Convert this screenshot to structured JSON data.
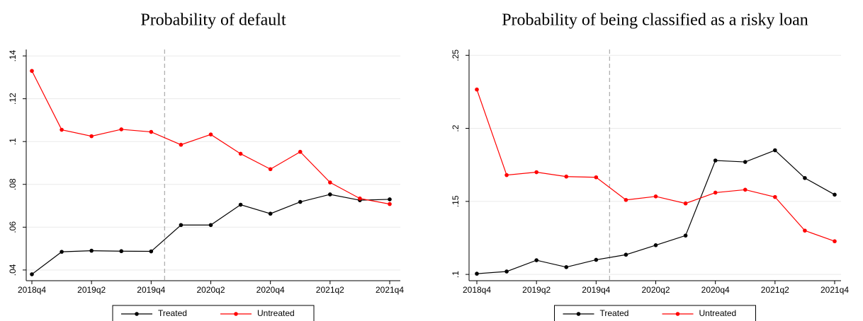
{
  "chart_data": [
    {
      "type": "line",
      "title": "Probability of default",
      "categories": [
        "2018q4",
        null,
        "2019q2",
        null,
        "2019q4",
        null,
        "2020q2",
        null,
        "2020q4",
        null,
        "2021q2",
        null,
        "2021q4"
      ],
      "series": [
        {
          "name": "Treated",
          "color": "#000000",
          "values": [
            0.038,
            0.0485,
            0.049,
            0.0488,
            0.0487,
            0.061,
            0.061,
            0.0705,
            0.0663,
            0.0718,
            0.0753,
            0.0726,
            0.073
          ]
        },
        {
          "name": "Untreated",
          "color": "#ff0000",
          "values": [
            0.133,
            0.1055,
            0.1025,
            0.1057,
            0.1045,
            0.0985,
            0.1033,
            0.0943,
            0.0871,
            0.0952,
            0.0809,
            0.0734,
            0.0708
          ]
        }
      ],
      "ylim": [
        0.035,
        0.143
      ],
      "yticks": [
        {
          "value": 0.04,
          "label": ".04"
        },
        {
          "value": 0.06,
          "label": ".06"
        },
        {
          "value": 0.08,
          "label": ".08"
        },
        {
          "value": 0.1,
          "label": ".1"
        },
        {
          "value": 0.12,
          "label": ".12"
        },
        {
          "value": 0.14,
          "label": ".14"
        }
      ],
      "grid": true
    },
    {
      "type": "line",
      "title": "Probability of being classified as a risky loan",
      "categories": [
        "2018q4",
        null,
        "2019q2",
        null,
        "2019q4",
        null,
        "2020q2",
        null,
        "2020q4",
        null,
        "2021q2",
        null,
        "2021q4"
      ],
      "series": [
        {
          "name": "Treated",
          "color": "#000000",
          "values": [
            0.1005,
            0.102,
            0.1097,
            0.105,
            0.11,
            0.1135,
            0.12,
            0.1266,
            0.178,
            0.177,
            0.185,
            0.166,
            0.1546
          ]
        },
        {
          "name": "Untreated",
          "color": "#ff0000",
          "values": [
            0.2266,
            0.168,
            0.17,
            0.167,
            0.1665,
            0.151,
            0.1534,
            0.1486,
            0.156,
            0.158,
            0.153,
            0.13,
            0.1227
          ]
        }
      ],
      "ylim": [
        0.0957,
        0.254
      ],
      "yticks": [
        {
          "value": 0.1,
          "label": ".1"
        },
        {
          "value": 0.15,
          "label": ".15"
        },
        {
          "value": 0.2,
          "label": ".2"
        },
        {
          "value": 0.25,
          "label": ".25"
        }
      ],
      "grid": true
    }
  ]
}
